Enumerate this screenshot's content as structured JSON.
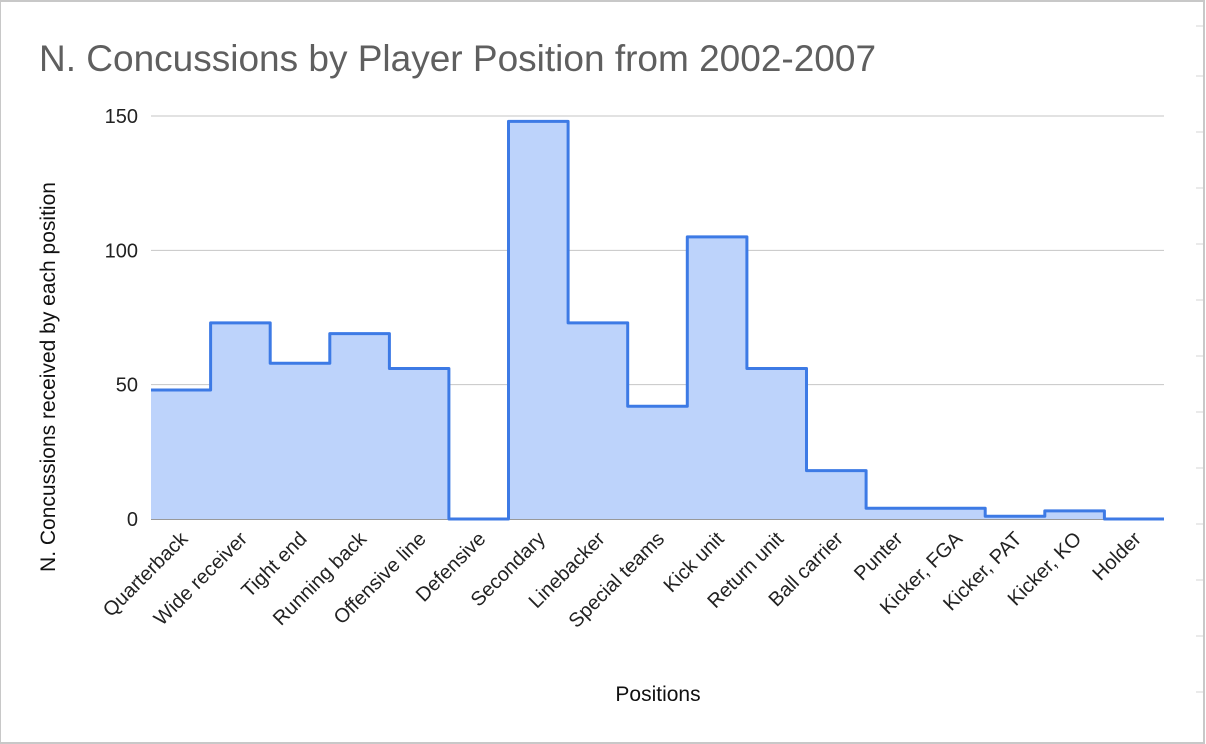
{
  "chart_data": {
    "type": "area",
    "step": true,
    "title": "N. Concussions by Player Position from 2002-2007",
    "xlabel": "Positions",
    "ylabel": "N. Concussions received by each position",
    "categories": [
      "Quarterback",
      "Wide receiver",
      "Tight end",
      "Running back",
      "Offensive line",
      "Defensive",
      "Secondary",
      "Linebacker",
      "Special teams",
      "Kick unit",
      "Return unit",
      "Ball carrier",
      "Punter",
      "Kicker, FGA",
      "Kicker, PAT",
      "Kicker, KO",
      "Holder"
    ],
    "series": [
      {
        "values": [
          48,
          73,
          58,
          69,
          56,
          0,
          148,
          73,
          42,
          105,
          56,
          18,
          4,
          4,
          1,
          3,
          0
        ]
      }
    ],
    "ylim": [
      0,
      150
    ],
    "yticks": [
      0,
      50,
      100,
      150
    ],
    "grid": true,
    "legend": "none",
    "colors": {
      "line": "#3d7ae5",
      "fill": "#bdd3fb",
      "grid": "#c6c6c6"
    }
  }
}
